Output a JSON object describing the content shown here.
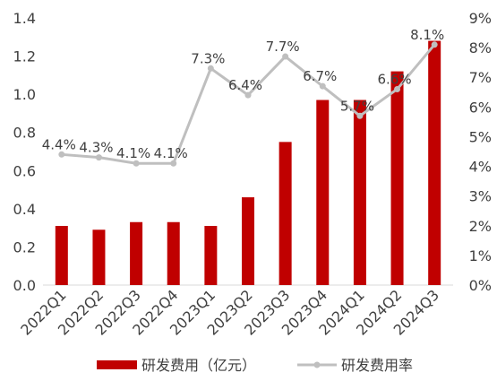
{
  "chart_data": {
    "type": "bar",
    "categories": [
      "2022Q1",
      "2022Q2",
      "2022Q3",
      "2022Q4",
      "2023Q1",
      "2023Q2",
      "2023Q3",
      "2023Q4",
      "2024Q1",
      "2024Q2",
      "2024Q3"
    ],
    "series": [
      {
        "name": "研发费用（亿元）",
        "type": "bar",
        "axis": "left",
        "color": "#c00000",
        "values": [
          0.31,
          0.29,
          0.33,
          0.33,
          0.31,
          0.46,
          0.75,
          0.97,
          0.97,
          1.12,
          1.28
        ]
      },
      {
        "name": "研发费用率",
        "type": "line",
        "axis": "right",
        "color": "#bfbfbf",
        "values": [
          4.4,
          4.3,
          4.1,
          4.1,
          7.3,
          6.4,
          7.7,
          6.7,
          5.7,
          6.6,
          8.1
        ],
        "labels": [
          "4.4%",
          "4.3%",
          "4.1%",
          "4.1%",
          "7.3%",
          "6.4%",
          "7.7%",
          "6.7%",
          "5.7%",
          "6.6%",
          "8.1%"
        ]
      }
    ],
    "y_left": {
      "ylim": [
        0,
        1.4
      ],
      "ticks": [
        0,
        0.2,
        0.4,
        0.6,
        0.8,
        1.0,
        1.2,
        1.4
      ],
      "tick_labels": [
        "0.0",
        "0.2",
        "0.4",
        "0.6",
        "0.8",
        "1.0",
        "1.2",
        "1.4"
      ]
    },
    "y_right": {
      "ylim": [
        0,
        9
      ],
      "ticks": [
        0,
        1,
        2,
        3,
        4,
        5,
        6,
        7,
        8,
        9
      ],
      "tick_labels": [
        "0%",
        "1%",
        "2%",
        "3%",
        "4%",
        "5%",
        "6%",
        "7%",
        "8%",
        "9%"
      ]
    },
    "grid": false,
    "legend_position": "bottom",
    "title": "",
    "xlabel": "",
    "ylabel": ""
  }
}
